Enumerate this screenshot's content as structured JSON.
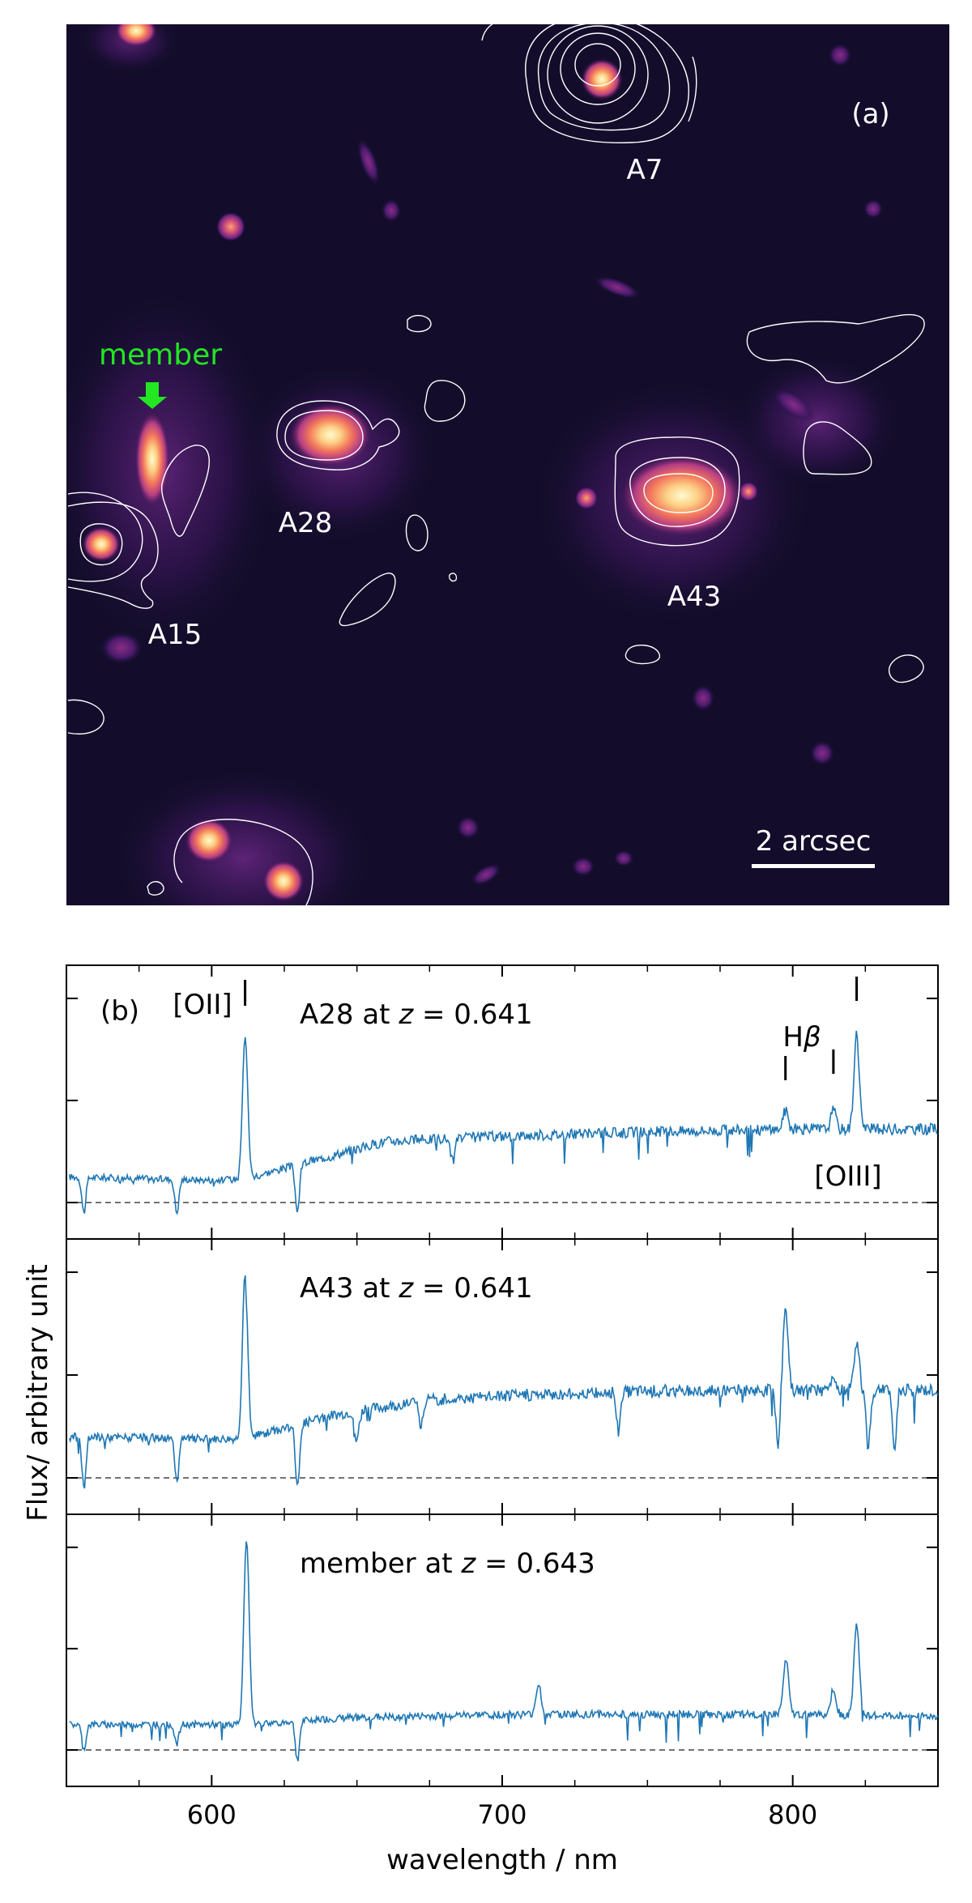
{
  "image_panel": {
    "panel_label": "(a)",
    "scale_bar_label": "2 arcsec",
    "member_label": "member",
    "member_color": "#22e622",
    "sources": [
      "A7",
      "A28",
      "A15",
      "A43"
    ],
    "colormap": "magma",
    "contour_color": "#ffffff"
  },
  "chart_data": {
    "type": "line",
    "panel_label": "(b)",
    "xlabel": "wavelength / nm",
    "ylabel": "Flux/ arbitrary unit",
    "xlim": [
      550,
      850
    ],
    "xticks": [
      600,
      700,
      800
    ],
    "line_color": "#1f77b4",
    "baseline_style": "dashed",
    "panels": [
      {
        "title": "A28 at z = 0.641",
        "object": "A28",
        "z": "0.641",
        "continuum": [
          [
            552,
            0.25
          ],
          [
            600,
            0.22
          ],
          [
            611,
            0.23
          ],
          [
            640,
            0.45
          ],
          [
            660,
            0.6
          ],
          [
            700,
            0.65
          ],
          [
            760,
            0.7
          ],
          [
            800,
            0.72
          ],
          [
            850,
            0.72
          ]
        ],
        "emission_lines": [
          [
            611.5,
            1.65
          ],
          [
            797.5,
            0.9
          ],
          [
            814,
            0.9
          ],
          [
            822,
            1.65
          ]
        ],
        "absorption_lines": [
          [
            556,
            -0.1
          ],
          [
            588,
            -0.1
          ],
          [
            629.5,
            -0.1
          ],
          [
            683,
            0.4
          ]
        ],
        "line_labels": [
          {
            "text": "[OII]",
            "wavelength": 611.5
          },
          {
            "text": "Hβ",
            "wavelength": 797.5
          },
          {
            "text": "[OIII]",
            "wavelength": 814
          },
          {
            "text": "[OIII]",
            "wavelength": 822
          }
        ]
      },
      {
        "title": "A43 at z = 0.641",
        "object": "A43",
        "z": "0.641",
        "continuum": [
          [
            552,
            0.4
          ],
          [
            600,
            0.38
          ],
          [
            611,
            0.38
          ],
          [
            640,
            0.6
          ],
          [
            672,
            0.75
          ],
          [
            700,
            0.8
          ],
          [
            760,
            0.85
          ],
          [
            800,
            0.85
          ],
          [
            850,
            0.85
          ]
        ],
        "emission_lines": [
          [
            611.5,
            2.0
          ],
          [
            797.5,
            1.6
          ],
          [
            814,
            1.0
          ],
          [
            822,
            1.3
          ]
        ],
        "absorption_lines": [
          [
            556,
            -0.1
          ],
          [
            588,
            -0.05
          ],
          [
            629.5,
            -0.1
          ],
          [
            650,
            0.35
          ],
          [
            672,
            0.5
          ],
          [
            740,
            0.45
          ],
          [
            795,
            0.3
          ],
          [
            826,
            0.3
          ],
          [
            835,
            0.3
          ]
        ]
      },
      {
        "title": "member at z = 0.643",
        "object": "member",
        "z": "0.643",
        "continuum": [
          [
            552,
            0.25
          ],
          [
            611,
            0.25
          ],
          [
            650,
            0.32
          ],
          [
            700,
            0.35
          ],
          [
            760,
            0.35
          ],
          [
            800,
            0.35
          ],
          [
            850,
            0.33
          ]
        ],
        "emission_lines": [
          [
            612,
            2.1
          ],
          [
            712.5,
            0.65
          ],
          [
            797.5,
            1.05
          ],
          [
            814,
            0.6
          ],
          [
            822,
            1.25
          ]
        ],
        "absorption_lines": [
          [
            556,
            0.0
          ],
          [
            588,
            0.05
          ],
          [
            629.5,
            -0.1
          ],
          [
            797,
            0.15
          ]
        ]
      }
    ]
  }
}
